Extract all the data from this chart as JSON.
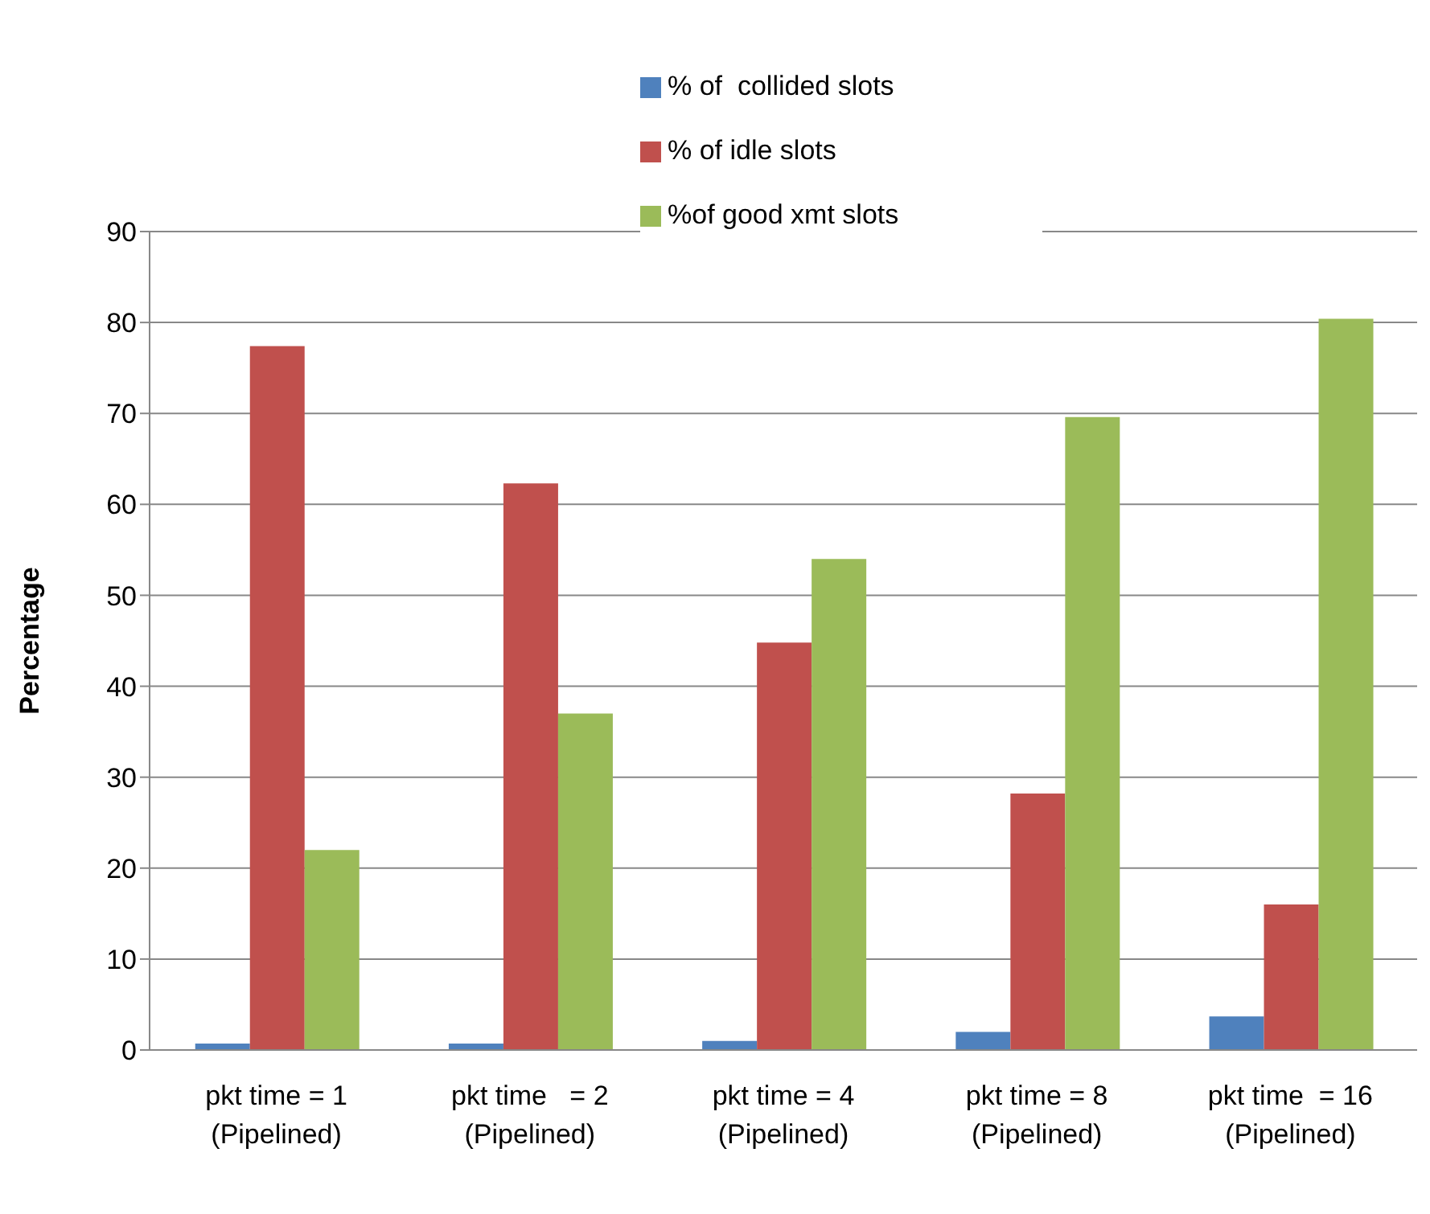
{
  "chart_data": {
    "type": "bar",
    "ylabel": "Percentage",
    "categories": [
      "pkt time = 1\n(Pipelined)",
      "pkt time   = 2\n(Pipelined)",
      "pkt time = 4\n(Pipelined)",
      "pkt time = 8\n(Pipelined)",
      "pkt time  = 16\n(Pipelined)"
    ],
    "series": [
      {
        "name": "% of  collided slots",
        "color": "#4f81bd",
        "values": [
          0.7,
          0.7,
          1,
          2,
          3.7
        ]
      },
      {
        "name": "% of idle slots",
        "color": "#c0504d",
        "values": [
          77.4,
          62.3,
          44.8,
          28.2,
          16
        ]
      },
      {
        "name": "%of good xmt slots",
        "color": "#9bbb59",
        "values": [
          22,
          37,
          54,
          69.6,
          80.4
        ]
      }
    ],
    "ylim": [
      0,
      90
    ],
    "yticks": [
      0,
      10,
      20,
      30,
      40,
      50,
      60,
      70,
      80,
      90
    ],
    "grid": "y",
    "legend": "top"
  }
}
